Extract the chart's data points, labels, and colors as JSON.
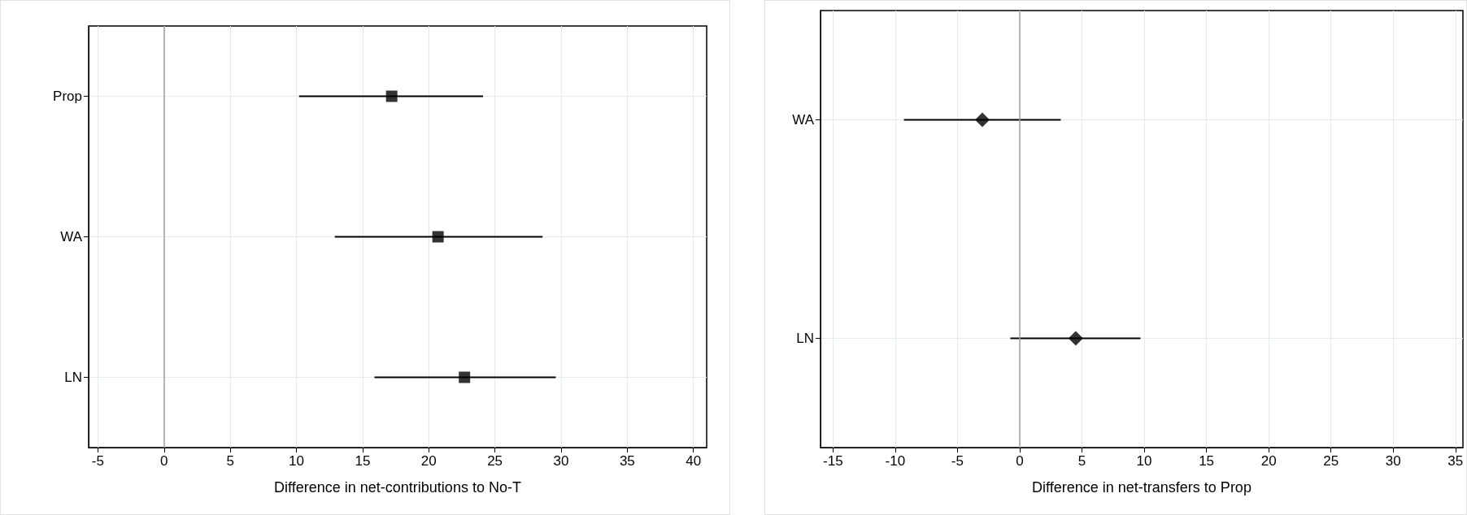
{
  "chart_data": [
    {
      "type": "scatter",
      "orientation": "horizontal",
      "xlabel": "Difference in net-contributions to No-T",
      "categories": [
        "Prop",
        "WA",
        "LN"
      ],
      "values": [
        17.2,
        20.7,
        22.7
      ],
      "errors": [
        [
          10.2,
          24.1
        ],
        [
          12.9,
          28.6
        ],
        [
          15.9,
          29.6
        ]
      ],
      "color": "#000000",
      "marker": "square",
      "xlim": [
        -5.7,
        41
      ],
      "xticks": [
        -5,
        0,
        5,
        10,
        15,
        20,
        25,
        30,
        35,
        40
      ],
      "grid": true,
      "ref_lines": [
        {
          "axis": "x",
          "value": 0,
          "color": "#a0a0a0"
        }
      ]
    },
    {
      "type": "scatter",
      "orientation": "horizontal",
      "xlabel": "Difference in net-transfers to Prop",
      "categories": [
        "WA",
        "LN"
      ],
      "values": [
        -3.0,
        4.5
      ],
      "errors": [
        [
          -9.3,
          3.3
        ],
        [
          -0.75,
          9.7
        ]
      ],
      "color": "#000000",
      "marker": "diamond",
      "xlim": [
        -16,
        35.6
      ],
      "xticks": [
        -15,
        -10,
        -5,
        0,
        5,
        10,
        15,
        20,
        25,
        30,
        35
      ],
      "grid": true,
      "ref_lines": [
        {
          "axis": "x",
          "value": 0,
          "color": "#a0a0a0"
        }
      ]
    }
  ]
}
